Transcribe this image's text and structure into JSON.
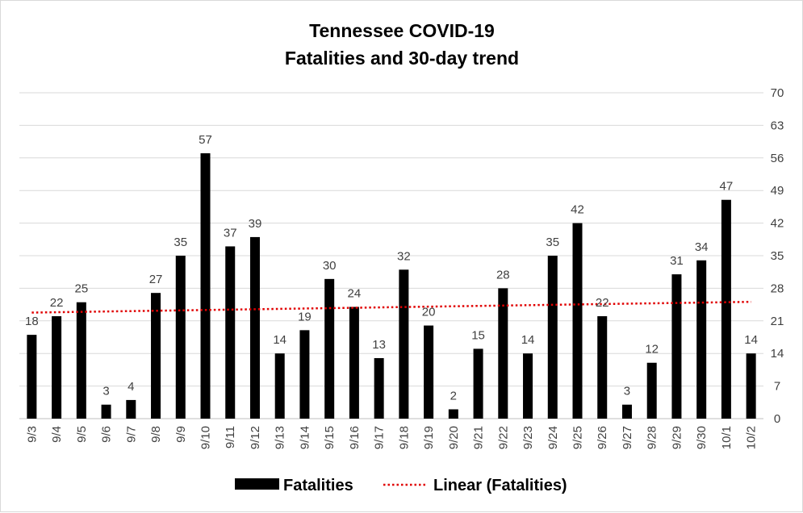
{
  "chart_data": {
    "type": "bar",
    "title": "Tennessee COVID-19",
    "subtitle": "Fatalities and 30-day trend",
    "categories": [
      "9/3",
      "9/4",
      "9/5",
      "9/6",
      "9/7",
      "9/8",
      "9/9",
      "9/10",
      "9/11",
      "9/12",
      "9/13",
      "9/14",
      "9/15",
      "9/16",
      "9/17",
      "9/18",
      "9/19",
      "9/20",
      "9/21",
      "9/22",
      "9/23",
      "9/24",
      "9/25",
      "9/26",
      "9/27",
      "9/28",
      "9/29",
      "9/30",
      "10/1",
      "10/2"
    ],
    "series": [
      {
        "name": "Fatalities",
        "values": [
          18,
          22,
          25,
          3,
          4,
          27,
          35,
          57,
          37,
          39,
          14,
          19,
          30,
          24,
          13,
          32,
          20,
          2,
          15,
          28,
          14,
          35,
          42,
          22,
          3,
          12,
          31,
          34,
          47,
          14
        ]
      }
    ],
    "trendline": {
      "name": "Linear (Fatalities)",
      "type": "linear"
    },
    "y_axis": {
      "position": "right",
      "ylim": [
        0,
        70
      ],
      "ticks": [
        0,
        7,
        14,
        21,
        28,
        35,
        42,
        49,
        56,
        63,
        70
      ]
    },
    "grid": true,
    "legend_position": "bottom",
    "colors": {
      "bar": "#000000",
      "trendline": "#e00000",
      "gridline": "#d9d9d9",
      "text": "#404040"
    }
  }
}
